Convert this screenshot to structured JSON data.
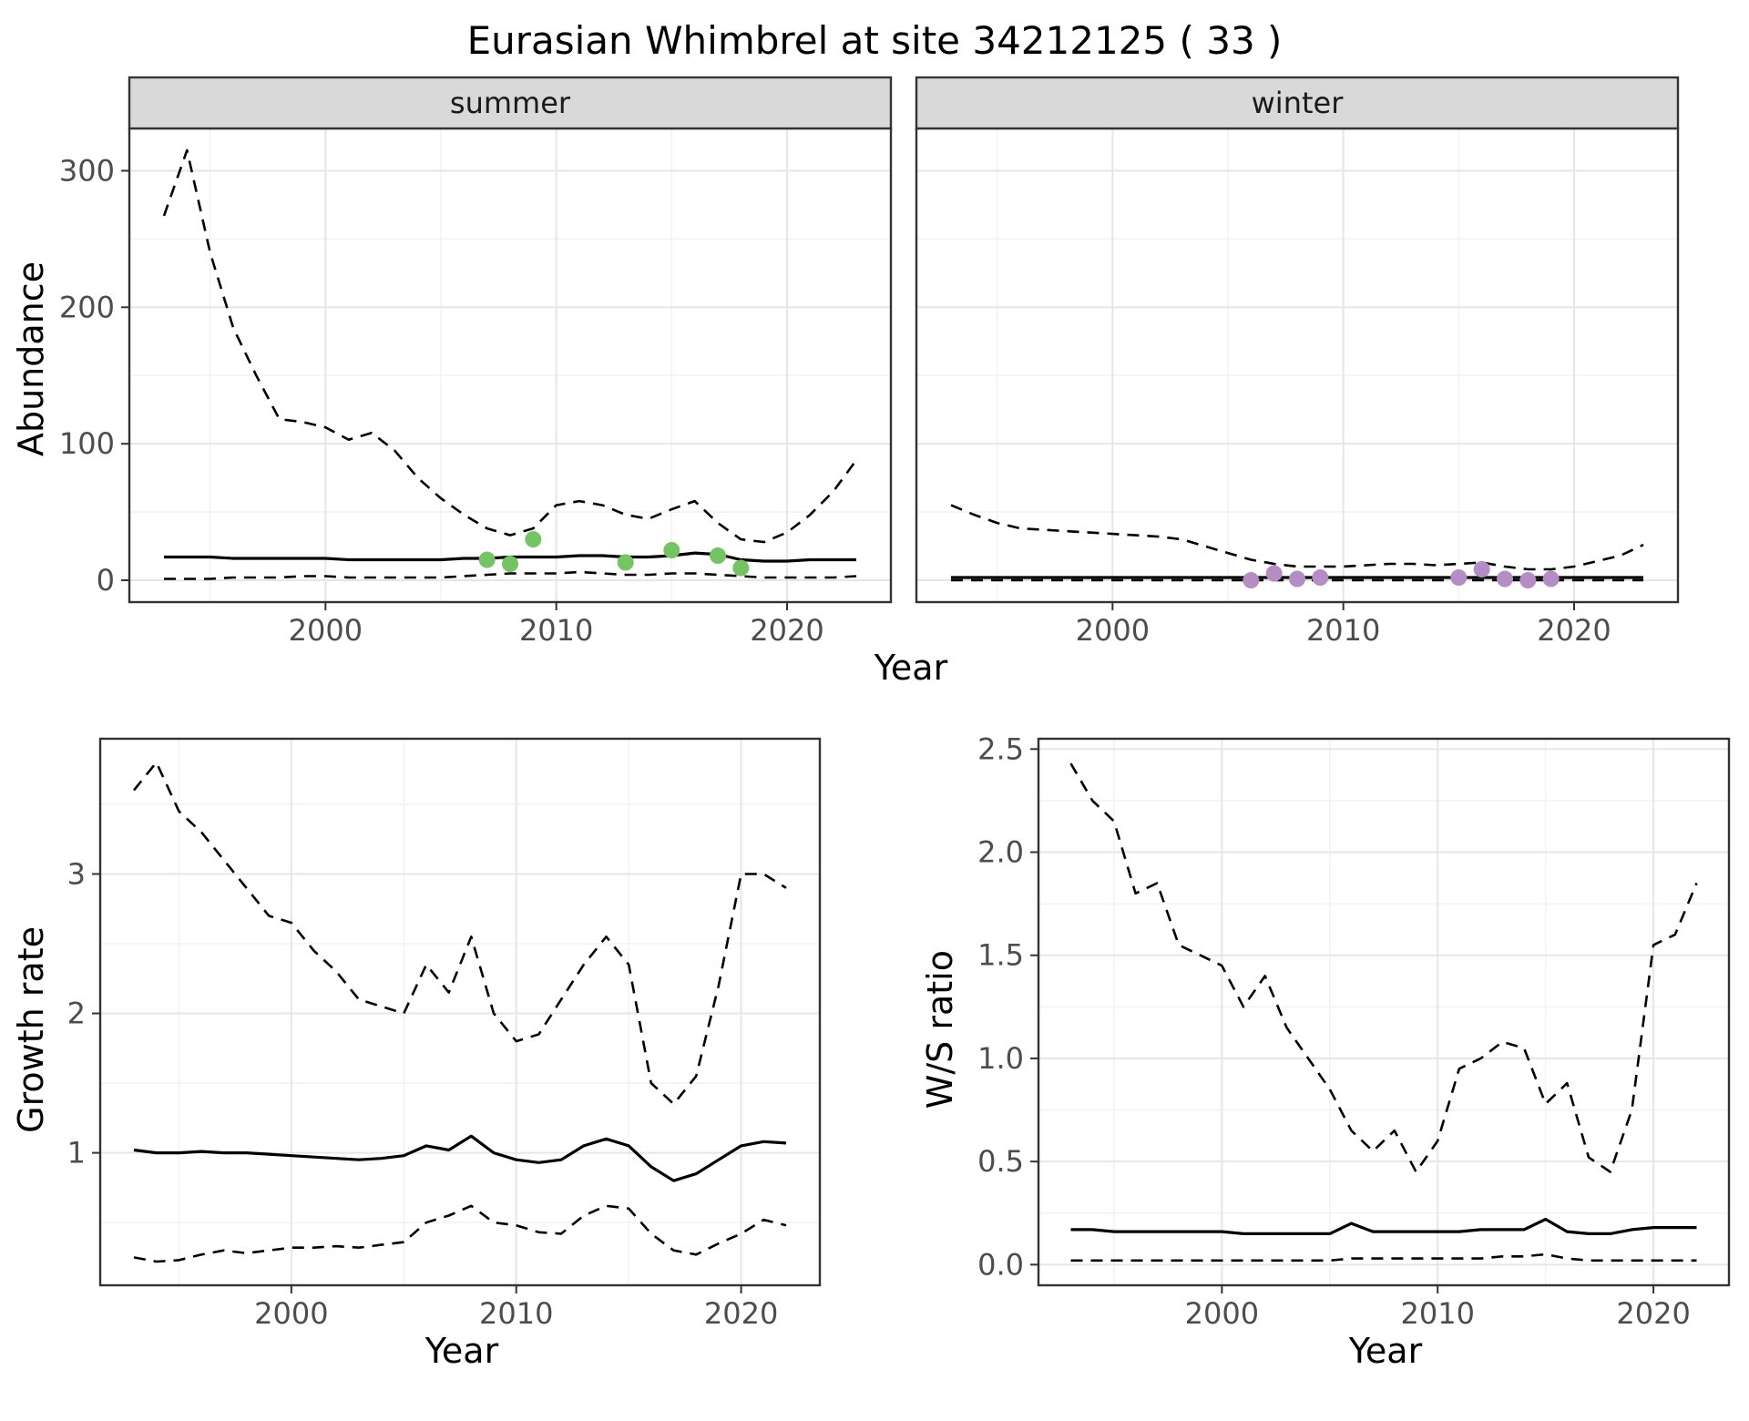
{
  "title": "Eurasian Whimbrel at site 34212125 ( 33 )",
  "colors": {
    "summer_points": "#74c464",
    "winter_points": "#b58cc4",
    "line": "#000000",
    "grid_major": "#e6e6e6",
    "grid_minor": "#f3f3f3",
    "panel_border": "#333333",
    "strip_bg": "#d9d9d9",
    "strip_text": "#1a1a1a",
    "tick_label": "#4d4d4d"
  },
  "top": {
    "ylabel": "Abundance",
    "xlabel": "Year"
  },
  "bottom_plots": [
    {
      "ylabel": "Growth rate",
      "xlabel": "Year"
    },
    {
      "ylabel": "W/S ratio",
      "xlabel": "Year"
    }
  ],
  "chart_data": [
    {
      "id": "abundance-summer",
      "type": "line",
      "facet_label": "summer",
      "ylabel": "Abundance",
      "xlabel": "Year",
      "x_from": 1993,
      "xlim": [
        1991.5,
        2024.5
      ],
      "ylim": [
        -16,
        331
      ],
      "xticks": [
        2000,
        2010,
        2020
      ],
      "xtick_labels": [
        "2000",
        "2010",
        "2020"
      ],
      "xticks_minor": [
        1995,
        2005,
        2015
      ],
      "yticks": [
        0,
        100,
        200,
        300
      ],
      "ytick_labels": [
        "0",
        "100",
        "200",
        "300"
      ],
      "yticks_minor": [
        50,
        150,
        250
      ],
      "series": [
        {
          "name": "upper_ci",
          "style": "dashed",
          "values": [
            267,
            315,
            240,
            185,
            150,
            118,
            116,
            112,
            103,
            108,
            95,
            75,
            60,
            48,
            38,
            33,
            38,
            55,
            58,
            55,
            48,
            45,
            52,
            58,
            42,
            30,
            28,
            35,
            48,
            65,
            88
          ]
        },
        {
          "name": "median",
          "style": "solid",
          "values": [
            17,
            17,
            17,
            16,
            16,
            16,
            16,
            16,
            15,
            15,
            15,
            15,
            15,
            16,
            16,
            17,
            17,
            17,
            18,
            18,
            17,
            17,
            18,
            20,
            19,
            15,
            14,
            14,
            15,
            15,
            15
          ]
        },
        {
          "name": "lower_ci",
          "style": "dashed",
          "values": [
            1,
            1,
            1,
            2,
            2,
            2,
            3,
            3,
            2,
            2,
            2,
            2,
            2,
            3,
            4,
            5,
            5,
            5,
            6,
            5,
            4,
            4,
            5,
            5,
            4,
            3,
            2,
            2,
            2,
            2,
            3
          ]
        }
      ],
      "points": {
        "name": "observed-counts",
        "color_key": "summer_points",
        "x": [
          2007,
          2008,
          2009,
          2013,
          2015,
          2017,
          2018
        ],
        "y": [
          15,
          12,
          30,
          13,
          22,
          18,
          9
        ]
      }
    },
    {
      "id": "abundance-winter",
      "type": "line",
      "facet_label": "winter",
      "ylabel": "Abundance",
      "xlabel": "Year",
      "x_from": 1993,
      "xlim": [
        1991.5,
        2024.5
      ],
      "ylim": [
        -16,
        331
      ],
      "xticks": [
        2000,
        2010,
        2020
      ],
      "xtick_labels": [
        "2000",
        "2010",
        "2020"
      ],
      "xticks_minor": [
        1995,
        2005,
        2015
      ],
      "yticks": [
        0,
        100,
        200,
        300
      ],
      "ytick_labels": [
        "0",
        "100",
        "200",
        "300"
      ],
      "yticks_minor": [
        50,
        150,
        250
      ],
      "series": [
        {
          "name": "upper_ci",
          "style": "dashed",
          "values": [
            55,
            48,
            42,
            38,
            37,
            36,
            35,
            34,
            33,
            32,
            30,
            25,
            20,
            15,
            12,
            10,
            10,
            10,
            11,
            12,
            12,
            11,
            12,
            13,
            10,
            8,
            8,
            10,
            14,
            18,
            26
          ]
        },
        {
          "name": "median",
          "style": "solid",
          "values": [
            2,
            2,
            2,
            2,
            2,
            2,
            2,
            2,
            2,
            2,
            2,
            2,
            2,
            2,
            2,
            2,
            2,
            2,
            2,
            2,
            2,
            2,
            2,
            2,
            2,
            2,
            2,
            2,
            2,
            2,
            2
          ]
        },
        {
          "name": "lower_ci",
          "style": "dashed",
          "values": [
            0,
            0,
            0,
            0,
            0,
            0,
            0,
            0,
            0,
            0,
            0,
            0,
            0,
            0,
            0,
            0,
            0,
            0,
            0,
            0,
            0,
            0,
            0,
            0,
            0,
            0,
            0,
            0,
            0,
            0,
            0
          ]
        }
      ],
      "points": {
        "name": "observed-counts",
        "color_key": "winter_points",
        "x": [
          2006,
          2007,
          2008,
          2009,
          2015,
          2016,
          2017,
          2018,
          2019
        ],
        "y": [
          0,
          5,
          1,
          2,
          2,
          8,
          1,
          0,
          1
        ]
      }
    },
    {
      "id": "growth-rate",
      "type": "line",
      "ylabel": "Growth rate",
      "xlabel": "Year",
      "x_from": 1993,
      "xlim": [
        1991.5,
        2023.5
      ],
      "ylim": [
        0.05,
        3.97
      ],
      "xticks": [
        2000,
        2010,
        2020
      ],
      "xtick_labels": [
        "2000",
        "2010",
        "2020"
      ],
      "xticks_minor": [
        1995,
        2005,
        2015
      ],
      "yticks": [
        1,
        2,
        3
      ],
      "ytick_labels": [
        "1",
        "2",
        "3"
      ],
      "yticks_minor": [
        0.5,
        1.5,
        2.5,
        3.5
      ],
      "series": [
        {
          "name": "upper_ci",
          "style": "dashed",
          "values": [
            3.6,
            3.8,
            3.45,
            3.3,
            3.1,
            2.9,
            2.7,
            2.65,
            2.45,
            2.3,
            2.1,
            2.05,
            2.0,
            2.35,
            2.15,
            2.55,
            2.0,
            1.8,
            1.85,
            2.1,
            2.35,
            2.55,
            2.35,
            1.5,
            1.35,
            1.55,
            2.2,
            3.0,
            3.0,
            2.9
          ]
        },
        {
          "name": "median",
          "style": "solid",
          "values": [
            1.02,
            1.0,
            1.0,
            1.01,
            1.0,
            1.0,
            0.99,
            0.98,
            0.97,
            0.96,
            0.95,
            0.96,
            0.98,
            1.05,
            1.02,
            1.12,
            1.0,
            0.95,
            0.93,
            0.95,
            1.05,
            1.1,
            1.05,
            0.9,
            0.8,
            0.85,
            0.95,
            1.05,
            1.08,
            1.07
          ]
        },
        {
          "name": "lower_ci",
          "style": "dashed",
          "values": [
            0.25,
            0.22,
            0.23,
            0.27,
            0.3,
            0.28,
            0.3,
            0.32,
            0.32,
            0.33,
            0.32,
            0.34,
            0.36,
            0.5,
            0.55,
            0.62,
            0.5,
            0.48,
            0.43,
            0.42,
            0.55,
            0.62,
            0.6,
            0.42,
            0.3,
            0.27,
            0.35,
            0.42,
            0.52,
            0.48
          ]
        }
      ],
      "points": null
    },
    {
      "id": "ws-ratio",
      "type": "line",
      "ylabel": "W/S ratio",
      "xlabel": "Year",
      "x_from": 1993,
      "xlim": [
        1991.5,
        2023.5
      ],
      "ylim": [
        -0.1,
        2.55
      ],
      "xticks": [
        2000,
        2010,
        2020
      ],
      "xtick_labels": [
        "2000",
        "2010",
        "2020"
      ],
      "xticks_minor": [
        1995,
        2005,
        2015
      ],
      "yticks": [
        0,
        0.5,
        1,
        1.5,
        2,
        2.5
      ],
      "ytick_labels": [
        "0.0",
        "0.5",
        "1.0",
        "1.5",
        "2.0",
        "2.5"
      ],
      "yticks_minor": [
        0.25,
        0.75,
        1.25,
        1.75,
        2.25
      ],
      "series": [
        {
          "name": "upper_ci",
          "style": "dashed",
          "values": [
            2.43,
            2.25,
            2.15,
            1.8,
            1.85,
            1.55,
            1.5,
            1.45,
            1.25,
            1.4,
            1.15,
            1.0,
            0.85,
            0.65,
            0.55,
            0.65,
            0.45,
            0.6,
            0.95,
            1.0,
            1.08,
            1.05,
            0.78,
            0.88,
            0.52,
            0.45,
            0.75,
            1.55,
            1.6,
            1.85
          ]
        },
        {
          "name": "median",
          "style": "solid",
          "values": [
            0.17,
            0.17,
            0.16,
            0.16,
            0.16,
            0.16,
            0.16,
            0.16,
            0.15,
            0.15,
            0.15,
            0.15,
            0.15,
            0.2,
            0.16,
            0.16,
            0.16,
            0.16,
            0.16,
            0.17,
            0.17,
            0.17,
            0.22,
            0.16,
            0.15,
            0.15,
            0.17,
            0.18,
            0.18,
            0.18
          ]
        },
        {
          "name": "lower_ci",
          "style": "dashed",
          "values": [
            0.02,
            0.02,
            0.02,
            0.02,
            0.02,
            0.02,
            0.02,
            0.02,
            0.02,
            0.02,
            0.02,
            0.02,
            0.02,
            0.03,
            0.03,
            0.03,
            0.03,
            0.03,
            0.03,
            0.03,
            0.04,
            0.04,
            0.05,
            0.03,
            0.02,
            0.02,
            0.02,
            0.02,
            0.02,
            0.02
          ]
        }
      ],
      "points": null
    }
  ]
}
